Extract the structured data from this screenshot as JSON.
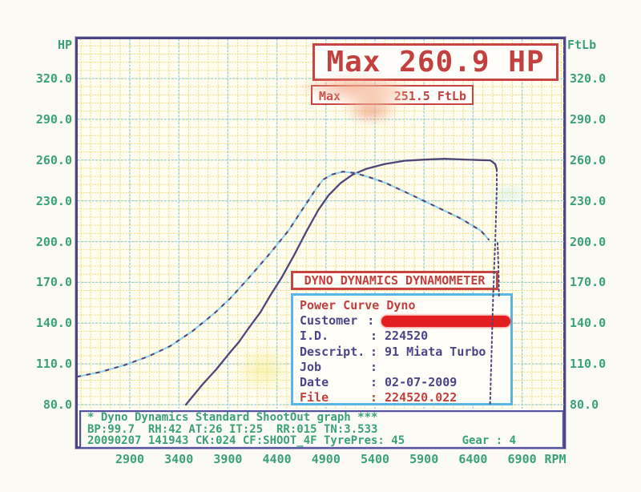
{
  "accent_colors": {
    "green_text": "#3ba277",
    "red_text": "#c4403e",
    "navy_text": "#4b4589",
    "blue_box_border": "#57b6e6",
    "frame_border": "#4c4686",
    "redaction_red": "#e31e1e"
  },
  "top_banner": {
    "max_hp_text": "Max 260.9 HP",
    "max_torque_prefix": "Max",
    "max_torque_value": "251.5 FtLb"
  },
  "axes_units": {
    "left": "HP",
    "right": "FtLb",
    "x": "RPM"
  },
  "dyno_header": "DYNO DYNAMICS DYNAMOMETER",
  "info_box": {
    "title": "Power Curve Dyno",
    "rows": [
      {
        "label": "Customer",
        "value": "",
        "redacted": true,
        "color": "navy"
      },
      {
        "label": "I.D.",
        "value": "224520",
        "redacted": false,
        "color": "navy"
      },
      {
        "label": "Descript.",
        "value": "91 Miata Turbo",
        "redacted": false,
        "color": "navy"
      },
      {
        "label": "Job",
        "value": "",
        "redacted": false,
        "color": "navy"
      },
      {
        "label": "Date",
        "value": "02-07-2009",
        "redacted": false,
        "color": "navy"
      },
      {
        "label": "File",
        "value": "224520.022",
        "redacted": false,
        "color": "red"
      }
    ]
  },
  "footer": {
    "line1": "* Dyno Dynamics Standard ShootOut graph ***",
    "line2": "BP:99.7  RH:42 AT:26 IT:25  RR:015 TN:3.533",
    "line3": "20090207 141943 CK:024 CF:SHOOT_4F TyrePres: 45",
    "gear": "Gear : 4"
  },
  "chart_data": {
    "type": "line",
    "title": "Max 260.9 HP",
    "xlabel": "RPM",
    "ylabel_left": "HP",
    "ylabel_right": "FtLb",
    "x_ticks": [
      "2900",
      "3400",
      "3900",
      "4400",
      "4900",
      "5400",
      "5900",
      "6400",
      "6900"
    ],
    "y_ticks": [
      "320.0",
      "290.0",
      "260.0",
      "230.0",
      "200.0",
      "170.0",
      "140.0",
      "110.0",
      "80.0"
    ],
    "y_range_shown": [
      80,
      320
    ],
    "max_hp": 260.9,
    "max_torque_ftlb": 251.5,
    "grid": "minor yellow dotted, major cyan dotted",
    "series": [
      {
        "name": "Horsepower",
        "unit": "HP",
        "style": "solid",
        "colors": [
          "#4e4679"
        ],
        "points": [
          [
            3472,
            80
          ],
          [
            3643,
            95
          ],
          [
            3782,
            106
          ],
          [
            3905,
            117
          ],
          [
            4011,
            126
          ],
          [
            4109,
            136
          ],
          [
            4232,
            148
          ],
          [
            4330,
            160
          ],
          [
            4452,
            174
          ],
          [
            4575,
            190
          ],
          [
            4697,
            207
          ],
          [
            4820,
            223
          ],
          [
            4926,
            234
          ],
          [
            5049,
            243
          ],
          [
            5171,
            249.3
          ],
          [
            5310,
            253.5
          ],
          [
            5498,
            257
          ],
          [
            5702,
            259.5
          ],
          [
            5906,
            260.3
          ],
          [
            6111,
            260.9
          ],
          [
            6315,
            260.4
          ],
          [
            6479,
            260.0
          ],
          [
            6577,
            259.8
          ],
          [
            6626,
            257
          ],
          [
            6642,
            253
          ]
        ]
      },
      {
        "name": "Torque",
        "unit": "FtLb",
        "style": "double-dash",
        "colors": [
          "#4e4679",
          "#8ed2ec"
        ],
        "points": [
          [
            2361,
            100.5
          ],
          [
            2598,
            104
          ],
          [
            2843,
            109
          ],
          [
            3088,
            115.5
          ],
          [
            3309,
            123
          ],
          [
            3537,
            134
          ],
          [
            3758,
            147
          ],
          [
            3921,
            158
          ],
          [
            4109,
            173
          ],
          [
            4313,
            190
          ],
          [
            4518,
            208
          ],
          [
            4681,
            226
          ],
          [
            4787,
            237.5
          ],
          [
            4869,
            245.5
          ],
          [
            4967,
            249.5
          ],
          [
            5073,
            251.5
          ],
          [
            5196,
            250.5
          ],
          [
            5335,
            247.5
          ],
          [
            5498,
            243.5
          ],
          [
            5768,
            234.5
          ],
          [
            6029,
            225.5
          ],
          [
            6274,
            217
          ],
          [
            6479,
            208
          ],
          [
            6560,
            201.5
          ]
        ]
      },
      {
        "name": "Run end drop",
        "unit": "HP",
        "style": "dotted",
        "colors": [
          "#4e4679"
        ],
        "points": [
          [
            6642,
            253
          ],
          [
            6642,
            239
          ],
          [
            6634,
            218
          ],
          [
            6626,
            200
          ],
          [
            6618,
            186
          ],
          [
            6605,
            160
          ],
          [
            6597,
            140
          ],
          [
            6589,
            118
          ],
          [
            6581,
            100
          ],
          [
            6577,
            88
          ],
          [
            6573,
            80
          ]
        ]
      },
      {
        "name": "Run end drop trace 2",
        "unit": "HP",
        "style": "dotted",
        "colors": [
          "#4e4679"
        ],
        "points": [
          [
            6650,
            199
          ],
          [
            6656,
            188
          ],
          [
            6662,
            172
          ],
          [
            6665,
            158
          ]
        ]
      }
    ]
  }
}
